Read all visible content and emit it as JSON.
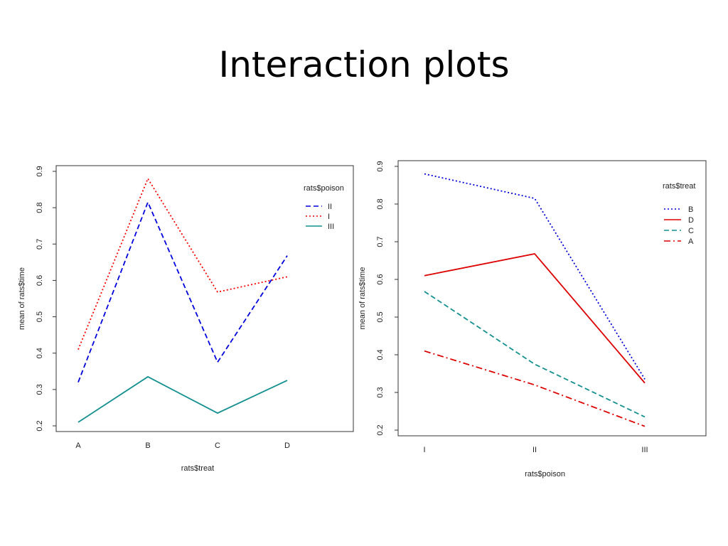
{
  "slide": {
    "title": "Interaction plots"
  },
  "chart_data": [
    {
      "type": "line",
      "xlabel": "rats$treat",
      "ylabel": "mean of  rats$time",
      "categories": [
        "A",
        "B",
        "C",
        "D"
      ],
      "ylim": [
        0.2,
        0.9
      ],
      "yticks": [
        "0.2",
        "0.3",
        "0.4",
        "0.5",
        "0.6",
        "0.7",
        "0.8",
        "0.9"
      ],
      "legend": {
        "title": "rats$poison",
        "position": "top-right"
      },
      "series": [
        {
          "name": "II",
          "values": [
            0.32,
            0.815,
            0.375,
            0.668
          ],
          "color": "#0000dd",
          "dash": "dashed"
        },
        {
          "name": "I",
          "values": [
            0.41,
            0.88,
            0.568,
            0.61
          ],
          "color": "#ff0000",
          "dash": "dotted"
        },
        {
          "name": "III",
          "values": [
            0.21,
            0.335,
            0.235,
            0.325
          ],
          "color": "#159090",
          "dash": "solid"
        }
      ]
    },
    {
      "type": "line",
      "xlabel": "rats$poison",
      "ylabel": "mean of  rats$time",
      "categories": [
        "I",
        "II",
        "III"
      ],
      "ylim": [
        0.2,
        0.9
      ],
      "yticks": [
        "0.2",
        "0.3",
        "0.4",
        "0.5",
        "0.6",
        "0.7",
        "0.8",
        "0.9"
      ],
      "legend": {
        "title": "rats$treat",
        "position": "top-right"
      },
      "series": [
        {
          "name": "B",
          "values": [
            0.88,
            0.815,
            0.335
          ],
          "color": "#0000dd",
          "dash": "dotted"
        },
        {
          "name": "D",
          "values": [
            0.61,
            0.668,
            0.325
          ],
          "color": "#dd0000",
          "dash": "solid"
        },
        {
          "name": "C",
          "values": [
            0.568,
            0.375,
            0.235
          ],
          "color": "#159090",
          "dash": "dashed"
        },
        {
          "name": "A",
          "values": [
            0.41,
            0.32,
            0.21
          ],
          "color": "#dd0000",
          "dash": "dotdash"
        }
      ]
    }
  ]
}
